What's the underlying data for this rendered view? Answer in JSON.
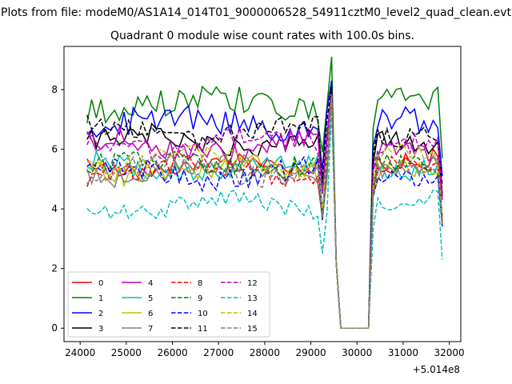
{
  "figure": {
    "suptitle": "Plots from file: modeM0/AS1A14_014T01_9000006528_54911cztM0_level2_quad_clean.evt",
    "title": "Quadrant 0 module wise count rates with 100.0s bins.",
    "x_offset_label": "+5.014e8"
  },
  "chart_data": {
    "type": "line",
    "title": "Quadrant 0 module wise count rates with 100.0s bins.",
    "xlabel": "",
    "ylabel": "",
    "x_offset": 501400000,
    "xlim": [
      23650,
      32250
    ],
    "ylim": [
      -0.45,
      9.45
    ],
    "xticks": [
      24000,
      25000,
      26000,
      27000,
      28000,
      29000,
      30000,
      31000,
      32000
    ],
    "yticks": [
      0,
      2,
      4,
      6,
      8
    ],
    "grid": false,
    "legend_position": "lower-left",
    "legend_columns": 4,
    "x_range": [
      24150,
      31850
    ],
    "bin_size": 100,
    "gap": [
      29650,
      30250
    ],
    "series": [
      {
        "name": "0",
        "color": "#ff0000",
        "dash": "solid",
        "base_value": 5.5,
        "wave": 0.35,
        "peak": 8.1
      },
      {
        "name": "1",
        "color": "#008000",
        "dash": "solid",
        "base_value": 7.5,
        "wave": 0.45,
        "peak": 9.1
      },
      {
        "name": "2",
        "color": "#0000ff",
        "dash": "solid",
        "base_value": 6.9,
        "wave": 0.45,
        "peak": 8.3
      },
      {
        "name": "3",
        "color": "#000000",
        "dash": "solid",
        "base_value": 6.3,
        "wave": 0.35,
        "peak": 8.1
      },
      {
        "name": "4",
        "color": "#bf00bf",
        "dash": "solid",
        "base_value": 6.1,
        "wave": 0.4,
        "peak": 8.0
      },
      {
        "name": "5",
        "color": "#00bfbf",
        "dash": "solid",
        "base_value": 5.4,
        "wave": 0.35,
        "peak": 7.9
      },
      {
        "name": "6",
        "color": "#bfbf00",
        "dash": "solid",
        "base_value": 5.3,
        "wave": 0.35,
        "peak": 7.9
      },
      {
        "name": "7",
        "color": "#808080",
        "dash": "solid",
        "base_value": 5.3,
        "wave": 0.35,
        "peak": 7.8
      },
      {
        "name": "8",
        "color": "#ff0000",
        "dash": "dashed",
        "base_value": 5.3,
        "wave": 0.35,
        "peak": 7.9
      },
      {
        "name": "9",
        "color": "#008000",
        "dash": "dashed",
        "base_value": 5.5,
        "wave": 0.35,
        "peak": 7.8
      },
      {
        "name": "10",
        "color": "#0000ff",
        "dash": "dashed",
        "base_value": 5.2,
        "wave": 0.4,
        "peak": 7.8
      },
      {
        "name": "11",
        "color": "#000000",
        "dash": "dashed",
        "base_value": 6.6,
        "wave": 0.35,
        "peak": 8.1
      },
      {
        "name": "12",
        "color": "#bf00bf",
        "dash": "dashed",
        "base_value": 6.2,
        "wave": 0.35,
        "peak": 7.9
      },
      {
        "name": "13",
        "color": "#00bfbf",
        "dash": "dashed",
        "base_value": 4.1,
        "wave": 0.3,
        "peak": 7.3
      },
      {
        "name": "14",
        "color": "#bfbf00",
        "dash": "dashed",
        "base_value": 5.6,
        "wave": 0.35,
        "peak": 7.8
      },
      {
        "name": "15",
        "color": "#808080",
        "dash": "dashed",
        "base_value": 5.3,
        "wave": 0.35,
        "peak": 7.8
      }
    ]
  }
}
